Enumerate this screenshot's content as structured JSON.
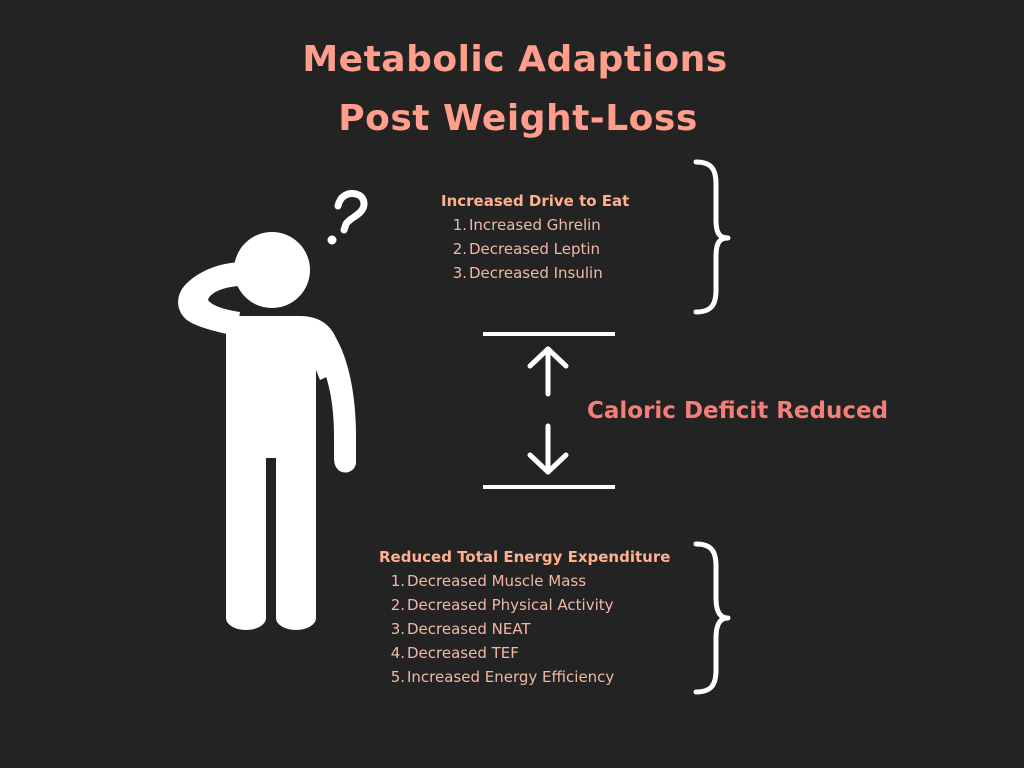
{
  "title": {
    "line1": "Metabolic Adaptions",
    "line2": "Post Weight-Loss"
  },
  "drive_to_eat": {
    "heading": "Increased Drive to Eat",
    "items": [
      {
        "num": "1.",
        "text": "Increased Ghrelin"
      },
      {
        "num": "2.",
        "text": "Decreased Leptin"
      },
      {
        "num": "3.",
        "text": "Decreased Insulin"
      }
    ]
  },
  "deficit_label": "Caloric Deficit Reduced",
  "energy_expenditure": {
    "heading": "Reduced Total Energy Expenditure",
    "items": [
      {
        "num": "1.",
        "text": "Decreased Muscle Mass"
      },
      {
        "num": "2.",
        "text": "Decreased Physical Activity"
      },
      {
        "num": "3.",
        "text": "Decreased NEAT"
      },
      {
        "num": "4.",
        "text": "Decreased TEF"
      },
      {
        "num": "5.",
        "text": "Increased Energy Efficiency"
      }
    ]
  },
  "icons": {
    "person": "confused-person-icon",
    "question_mark": "question-mark-icon",
    "arrow_up": "arrow-up-icon",
    "arrow_down": "arrow-down-icon",
    "brace": "curly-brace-icon"
  },
  "colors": {
    "background": "#232323",
    "title": "#FF9E8C",
    "heading": "#FFB08F",
    "list_text": "#F0B9A6",
    "deficit": "#F47E7A",
    "graphics": "#FFFFFF"
  }
}
